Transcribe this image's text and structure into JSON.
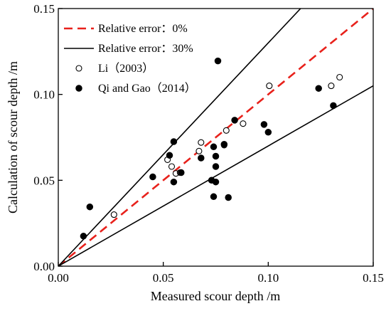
{
  "chart_data": {
    "type": "scatter",
    "xlabel": "Measured scour depth /m",
    "ylabel": "Calculation of scour depth /m",
    "xlim": [
      0,
      0.15
    ],
    "ylim": [
      0,
      0.15
    ],
    "xticks": [
      "0.00",
      "0.05",
      "0.10",
      "0.15"
    ],
    "yticks": [
      "0.00",
      "0.05",
      "0.10",
      "0.15"
    ],
    "legend_position": "top-left",
    "lines": [
      {
        "name": "Relative error：0%",
        "factor": 1.0,
        "style": "dashed",
        "color": "#e8211b"
      },
      {
        "name": "Relative error：30%",
        "factors": [
          1.3,
          0.7
        ],
        "style": "solid",
        "color": "#000000"
      }
    ],
    "series": [
      {
        "name": "Li（2003）",
        "marker": "open-circle",
        "points": [
          [
            0.0265,
            0.03
          ],
          [
            0.052,
            0.062
          ],
          [
            0.054,
            0.058
          ],
          [
            0.056,
            0.054
          ],
          [
            0.058,
            0.0545
          ],
          [
            0.067,
            0.067
          ],
          [
            0.068,
            0.072
          ],
          [
            0.079,
            0.0705
          ],
          [
            0.08,
            0.079
          ],
          [
            0.088,
            0.083
          ],
          [
            0.1005,
            0.105
          ],
          [
            0.13,
            0.105
          ],
          [
            0.134,
            0.11
          ]
        ]
      },
      {
        "name": "Qi and Gao（2014）",
        "marker": "filled-circle",
        "points": [
          [
            0.012,
            0.0175
          ],
          [
            0.015,
            0.0345
          ],
          [
            0.045,
            0.052
          ],
          [
            0.053,
            0.0645
          ],
          [
            0.055,
            0.0725
          ],
          [
            0.055,
            0.049
          ],
          [
            0.0585,
            0.0545
          ],
          [
            0.068,
            0.063
          ],
          [
            0.073,
            0.05
          ],
          [
            0.074,
            0.0695
          ],
          [
            0.075,
            0.064
          ],
          [
            0.075,
            0.058
          ],
          [
            0.075,
            0.049
          ],
          [
            0.074,
            0.0405
          ],
          [
            0.076,
            0.1195
          ],
          [
            0.079,
            0.071
          ],
          [
            0.081,
            0.04
          ],
          [
            0.084,
            0.085
          ],
          [
            0.098,
            0.0825
          ],
          [
            0.1,
            0.078
          ],
          [
            0.124,
            0.1035
          ],
          [
            0.131,
            0.0935
          ]
        ]
      }
    ]
  }
}
